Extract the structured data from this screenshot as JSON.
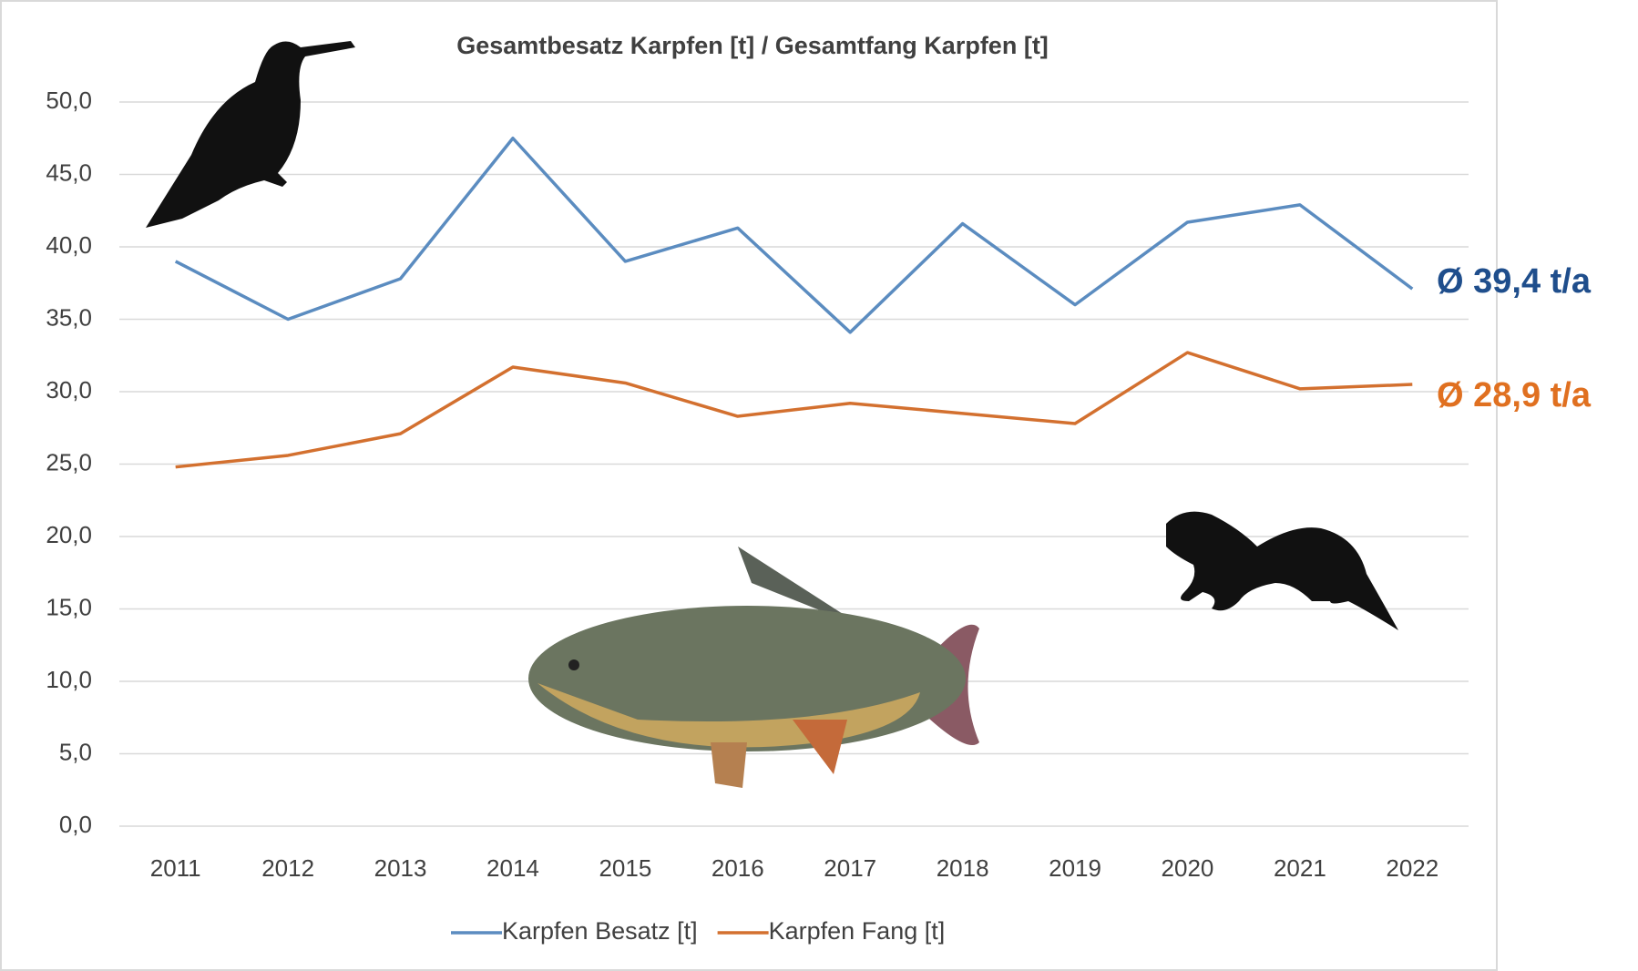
{
  "chart_data": {
    "type": "line",
    "title": "Gesamtbesatz Karpfen [t] / Gesamtfang Karpfen [t]",
    "categories": [
      "2011",
      "2012",
      "2013",
      "2014",
      "2015",
      "2016",
      "2017",
      "2018",
      "2019",
      "2020",
      "2021",
      "2022"
    ],
    "series": [
      {
        "name": "Karpfen Besatz [t]",
        "color": "#5b8cc0",
        "values": [
          39.0,
          35.0,
          37.8,
          47.5,
          39.0,
          41.3,
          34.1,
          41.6,
          36.0,
          41.7,
          42.9,
          37.1
        ]
      },
      {
        "name": "Karpfen Fang [t]",
        "color": "#d3702f",
        "values": [
          24.8,
          25.6,
          27.1,
          31.7,
          30.6,
          28.3,
          29.2,
          28.5,
          27.8,
          32.7,
          30.2,
          30.5
        ]
      }
    ],
    "ylim": [
      0,
      50
    ],
    "yticks": [
      {
        "value": 0,
        "label": "0,0"
      },
      {
        "value": 5,
        "label": "5,0"
      },
      {
        "value": 10,
        "label": "10,0"
      },
      {
        "value": 15,
        "label": "15,0"
      },
      {
        "value": 20,
        "label": "20,0"
      },
      {
        "value": 25,
        "label": "25,0"
      },
      {
        "value": 30,
        "label": "30,0"
      },
      {
        "value": 35,
        "label": "35,0"
      },
      {
        "value": 40,
        "label": "40,0"
      },
      {
        "value": 45,
        "label": "45,0"
      },
      {
        "value": 50,
        "label": "50,0"
      }
    ],
    "grid": true,
    "legend": "bottom",
    "annotations": [
      {
        "text": "Ø 39,4 t/a",
        "color": "#1f4e8c"
      },
      {
        "text": "Ø 28,9 t/a",
        "color": "#e07020"
      }
    ]
  }
}
